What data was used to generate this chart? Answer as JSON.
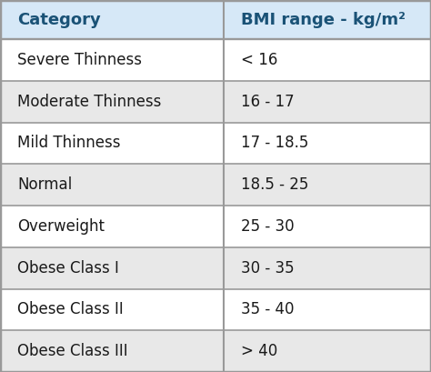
{
  "header": [
    "Category",
    "BMI range - kg/m²"
  ],
  "rows": [
    [
      "Severe Thinness",
      "< 16"
    ],
    [
      "Moderate Thinness",
      "16 - 17"
    ],
    [
      "Mild Thinness",
      "17 - 18.5"
    ],
    [
      "Normal",
      "18.5 - 25"
    ],
    [
      "Overweight",
      "25 - 30"
    ],
    [
      "Obese Class I",
      "30 - 35"
    ],
    [
      "Obese Class II",
      "35 - 40"
    ],
    [
      "Obese Class III",
      "> 40"
    ]
  ],
  "header_bg": "#d6e8f7",
  "row_bg_odd": "#ffffff",
  "row_bg_even": "#e8e8e8",
  "border_color": "#999999",
  "header_text_color": "#1a5276",
  "row_text_color": "#1a1a1a",
  "col_split": 0.52,
  "header_fontsize": 13,
  "row_fontsize": 12,
  "outer_border_lw": 2.5,
  "inner_border_lw": 1.2,
  "fig_bg": "#ffffff"
}
